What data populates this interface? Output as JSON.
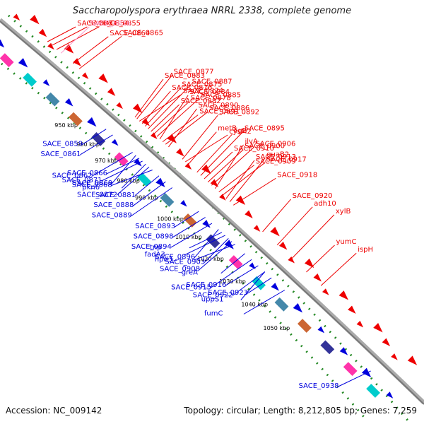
{
  "title": "Saccharopolyspora erythraea NRRL 2338, complete genome",
  "accession": "Accession: NC_009142",
  "summary": "Topology: circular; Length: 8,212,805 bp; Genes: 7,259",
  "colors": {
    "forward": "#ee0000",
    "reverse": "#0000dd",
    "backbone": "#888888",
    "ruler": "#228822",
    "pseudo": "#ff99cc"
  },
  "ticks": [
    "950 kbp",
    "960 kbp",
    "970 kbp",
    "980 kbp",
    "990 kbp",
    "1000 kbp",
    "1010 kbp",
    "1020 kbp",
    "1030 kbp",
    "1040 kbp",
    "1050 kbp"
  ],
  "right_labels": [
    {
      "name": "SACE_0851",
      "pos": 0.01,
      "pseudo": false
    },
    {
      "name": "SACE_0854",
      "pos": 0.022,
      "pseudo": false
    },
    {
      "name": "SACE_0855",
      "pos": 0.035,
      "pseudo": false
    },
    {
      "name": "SACE_8016",
      "pos": 0.047,
      "pseudo": true
    },
    {
      "name": "SACE_0864",
      "pos": 0.08,
      "pseudo": false
    },
    {
      "name": "SACE_0865",
      "pos": 0.097,
      "pseudo": false
    },
    {
      "name": "SACE_0883",
      "pos": 0.25,
      "pseudo": false
    },
    {
      "name": "SACE_0877",
      "pos": 0.255,
      "pseudo": false
    },
    {
      "name": "SACE_0874",
      "pos": 0.262,
      "pseudo": false
    },
    {
      "name": "SACE_0876",
      "pos": 0.27,
      "pseudo": false
    },
    {
      "name": "SACE_0875",
      "pos": 0.278,
      "pseudo": false
    },
    {
      "name": "SACE_0887",
      "pos": 0.286,
      "pseudo": false
    },
    {
      "name": "SACE_0882",
      "pos": 0.294,
      "pseudo": false
    },
    {
      "name": "SACE_0878",
      "pos": 0.302,
      "pseudo": false
    },
    {
      "name": "SACE_0885",
      "pos": 0.31,
      "pseudo": false
    },
    {
      "name": "SACE_0884",
      "pos": 0.318,
      "pseudo": false
    },
    {
      "name": "SACE_0891",
      "pos": 0.326,
      "pseudo": false
    },
    {
      "name": "SACE_0886",
      "pos": 0.334,
      "pseudo": false
    },
    {
      "name": "SACE_0890",
      "pos": 0.342,
      "pseudo": false
    },
    {
      "name": "SACE_0892",
      "pos": 0.38,
      "pseudo": false
    },
    {
      "name": "cysM2",
      "pos": 0.388,
      "pseudo": false
    },
    {
      "name": "metB",
      "pos": 0.396,
      "pseudo": false
    },
    {
      "name": "ligB",
      "pos": 0.42,
      "pseudo": false
    },
    {
      "name": "SACE_0895",
      "pos": 0.43,
      "pseudo": false
    },
    {
      "name": "SACE_0910",
      "pos": 0.44,
      "pseudo": false
    },
    {
      "name": "SACE_0900",
      "pos": 0.45,
      "pseudo": false
    },
    {
      "name": "SACE_0906",
      "pos": 0.46,
      "pseudo": false
    },
    {
      "name": "ilvA",
      "pos": 0.47,
      "pseudo": false
    },
    {
      "name": "SACE_0909",
      "pos": 0.48,
      "pseudo": false
    },
    {
      "name": "SACE_0917",
      "pos": 0.49,
      "pseudo": false
    },
    {
      "name": "SACE_0913",
      "pos": 0.5,
      "pseudo": false
    },
    {
      "name": "guaB2",
      "pos": 0.51,
      "pseudo": false
    },
    {
      "name": "SACE_0918",
      "pos": 0.52,
      "pseudo": false
    },
    {
      "name": "SACE_0920",
      "pos": 0.6,
      "pseudo": false
    },
    {
      "name": "adh10",
      "pos": 0.64,
      "pseudo": false
    },
    {
      "name": "xylB",
      "pos": 0.68,
      "pseudo": false
    },
    {
      "name": "yumC",
      "pos": 0.72,
      "pseudo": false
    },
    {
      "name": "ispH",
      "pos": 0.76,
      "pseudo": false
    }
  ],
  "left_labels": [
    {
      "name": "SACE_0859",
      "pos": 0.12
    },
    {
      "name": "SACE_0861",
      "pos": 0.14
    },
    {
      "name": "SACE_0862",
      "pos": 0.2
    },
    {
      "name": "SACE_0869",
      "pos": 0.21
    },
    {
      "name": "SACE_0866",
      "pos": 0.22
    },
    {
      "name": "SACE_0871",
      "pos": 0.23
    },
    {
      "name": "pkn6",
      "pos": 0.24
    },
    {
      "name": "SACE_0872",
      "pos": 0.25
    },
    {
      "name": "SACE_0868",
      "pos": 0.26
    },
    {
      "name": "SACE_0881",
      "pos": 0.28
    },
    {
      "name": "SACE_0888",
      "pos": 0.3
    },
    {
      "name": "SACE_0889",
      "pos": 0.32
    },
    {
      "name": "SACE_0893",
      "pos": 0.4
    },
    {
      "name": "SACE_0898",
      "pos": 0.42
    },
    {
      "name": "SACE_0894",
      "pos": 0.44
    },
    {
      "name": "SACE_0896",
      "pos": 0.46
    },
    {
      "name": "tnp",
      "pos": 0.47
    },
    {
      "name": "fadA3",
      "pos": 0.48
    },
    {
      "name": "SACE_0903",
      "pos": 0.49
    },
    {
      "name": "SACE_0908",
      "pos": 0.5
    },
    {
      "name": "hpd3",
      "pos": 0.51
    },
    {
      "name": "greA",
      "pos": 0.54
    },
    {
      "name": "SACE_0922",
      "pos": 0.6
    },
    {
      "name": "SACE_0915",
      "pos": 0.56
    },
    {
      "name": "SACE_0923",
      "pos": 0.62
    },
    {
      "name": "SACE_0916",
      "pos": 0.58
    },
    {
      "name": "fumC",
      "pos": 0.66
    },
    {
      "name": "uppS1",
      "pos": 0.6
    },
    {
      "name": "SACE_0938",
      "pos": 0.92
    }
  ]
}
